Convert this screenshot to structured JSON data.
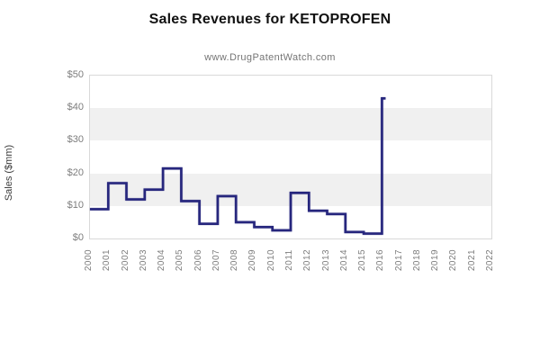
{
  "title": "Sales Revenues for KETOPROFEN",
  "subtitle": "www.DrugPatentWatch.com",
  "chart_data": {
    "type": "line",
    "line_style": "step-post",
    "title": "Sales Revenues for KETOPROFEN",
    "subtitle": "www.DrugPatentWatch.com",
    "xlabel": "",
    "ylabel": "Sales ($mm)",
    "x": [
      2000,
      2001,
      2002,
      2003,
      2004,
      2005,
      2006,
      2007,
      2008,
      2009,
      2010,
      2011,
      2012,
      2013,
      2014,
      2015,
      2016
    ],
    "values": [
      9,
      17,
      12,
      15,
      21.5,
      11.5,
      4.5,
      13,
      5,
      3.5,
      2.5,
      14,
      8.5,
      7.5,
      2,
      1.5,
      43
    ],
    "series_name": "Sales ($mm)",
    "xlim": [
      2000,
      2022
    ],
    "ylim": [
      0,
      50
    ],
    "x_ticks": [
      "2000",
      "2001",
      "2002",
      "2003",
      "2004",
      "2005",
      "2006",
      "2007",
      "2008",
      "2009",
      "2010",
      "2011",
      "2012",
      "2013",
      "2014",
      "2015",
      "2016",
      "2017",
      "2018",
      "2019",
      "2020",
      "2021",
      "2022"
    ],
    "y_ticks": [
      {
        "label": "$0",
        "value": 0
      },
      {
        "label": "$10",
        "value": 10
      },
      {
        "label": "$20",
        "value": 20
      },
      {
        "label": "$30",
        "value": 30
      },
      {
        "label": "$40",
        "value": 40
      },
      {
        "label": "$50",
        "value": 50
      }
    ],
    "shaded_bands": [
      [
        10,
        20
      ],
      [
        30,
        40
      ]
    ],
    "grid": "alternating-horizontal-bands",
    "legend": "none",
    "colors": {
      "line": "#26267d",
      "band": "#f0f0f0",
      "plot_border": "#d9d9d9",
      "tick_label": "#7d7d7d",
      "title": "#111111",
      "subtitle": "#757575"
    }
  }
}
